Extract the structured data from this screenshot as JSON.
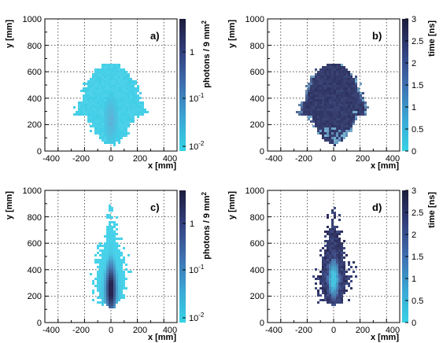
{
  "chart_data": [
    {
      "type": "heatmap",
      "panel_label": "a)",
      "xlabel": "x [mm]",
      "ylabel": "y [mm]",
      "xlim": [
        -500,
        500
      ],
      "ylim": [
        0,
        1000
      ],
      "x_ticks": [
        "-400",
        "-200",
        "0",
        "200",
        "400"
      ],
      "y_ticks": [
        "0",
        "200",
        "400",
        "600",
        "800",
        "1000"
      ],
      "colorbar": {
        "label": "photons / 9 mm",
        "label_sup": "2",
        "scale": "log",
        "range": [
          0.01,
          5
        ],
        "ticks": [
          {
            "base": "10",
            "exp": "-2"
          },
          {
            "base": "10",
            "exp": "-1"
          },
          {
            "base": "1",
            "exp": ""
          }
        ]
      },
      "shape": {
        "kind": "blob",
        "y0": 40,
        "y_mid": 350,
        "y_top": 665,
        "half_width_max": 230,
        "bulge_y": [
          270,
          380
        ],
        "bulge_half_width": 265,
        "scatter": 20
      },
      "colors": {
        "low": "#40cde6",
        "high": "#2a2a5c",
        "core": "#6aa6d2",
        "rim": "#5fd7ee"
      }
    },
    {
      "type": "heatmap",
      "panel_label": "b)",
      "xlabel": "x [mm]",
      "ylabel": "y [mm]",
      "xlim": [
        -500,
        500
      ],
      "ylim": [
        0,
        1000
      ],
      "x_ticks": [
        "-400",
        "-200",
        "0",
        "200",
        "400"
      ],
      "y_ticks": [
        "0",
        "200",
        "400",
        "600",
        "800",
        "1000"
      ],
      "colorbar": {
        "label": "time [ns]",
        "scale": "linear",
        "range": [
          0,
          3
        ],
        "ticks": [
          "0",
          "0.5",
          "1",
          "1.5",
          "2",
          "2.5",
          "3"
        ]
      },
      "shape": {
        "kind": "blob",
        "y0": 40,
        "y_mid": 350,
        "y_top": 665,
        "half_width_max": 230,
        "bulge_y": [
          270,
          380
        ],
        "bulge_half_width": 265,
        "scatter": 20
      },
      "colors": {
        "body": "#2e3260",
        "body2": "#3e4a7e",
        "patch": "#5a87b4",
        "edge": "#7cb6d6"
      }
    },
    {
      "type": "heatmap",
      "panel_label": "c)",
      "xlabel": "x [mm]",
      "ylabel": "y [mm]",
      "xlim": [
        -500,
        500
      ],
      "ylim": [
        0,
        1000
      ],
      "x_ticks": [
        "-400",
        "-200",
        "0",
        "200",
        "400"
      ],
      "y_ticks": [
        "0",
        "200",
        "400",
        "600",
        "800",
        "1000"
      ],
      "colorbar": {
        "label": "photons / 9 mm",
        "label_sup": "2",
        "scale": "log",
        "range": [
          0.01,
          5
        ],
        "ticks": [
          {
            "base": "10",
            "exp": "-2"
          },
          {
            "base": "10",
            "exp": "-1"
          },
          {
            "base": "1",
            "exp": ""
          }
        ]
      },
      "shape": {
        "kind": "tear",
        "y0": 110,
        "y_top": 900,
        "half_width_max": 150,
        "peak_y": 140,
        "scatter": 35
      },
      "colors": {
        "low": "#48d2ea",
        "mid": "#4a7fb8",
        "high": "#262650"
      }
    },
    {
      "type": "heatmap",
      "panel_label": "d)",
      "xlabel": "x [mm]",
      "ylabel": "y [mm]",
      "xlim": [
        -500,
        500
      ],
      "ylim": [
        0,
        1000
      ],
      "x_ticks": [
        "-400",
        "-200",
        "0",
        "200",
        "400"
      ],
      "y_ticks": [
        "0",
        "200",
        "400",
        "600",
        "800",
        "1000"
      ],
      "colorbar": {
        "label": "time [ns]",
        "scale": "linear",
        "range": [
          0,
          3
        ],
        "ticks": [
          "0",
          "0.5",
          "1",
          "1.5",
          "2",
          "2.5",
          "3"
        ]
      },
      "shape": {
        "kind": "tear",
        "y0": 110,
        "y_top": 920,
        "half_width_max": 150,
        "peak_y": 140,
        "scatter": 40
      },
      "colors": {
        "outer": "#2a2a56",
        "mid": "#4a5f9c",
        "inner": "#47c2e0"
      }
    }
  ]
}
